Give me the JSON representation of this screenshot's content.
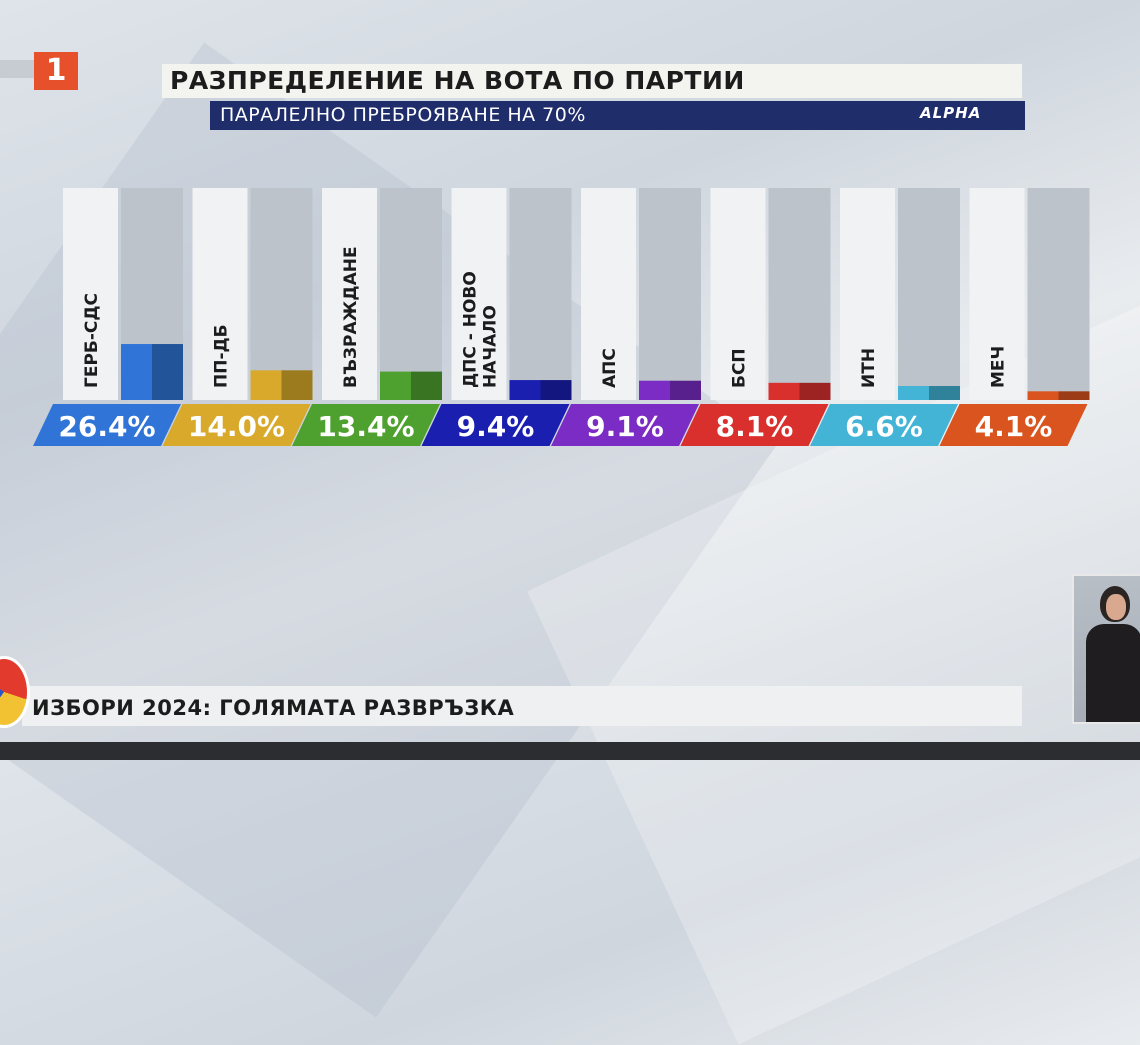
{
  "channel_logo": "1",
  "header": {
    "title": "РАЗПРЕДЕЛЕНИЕ НА ВОТА ПО ПАРТИИ",
    "subtitle": "ПАРАЛЕЛНО ПРЕБРОЯВАНЕ НА 70%",
    "source_logo": "ALPHA"
  },
  "footer": {
    "text": "ИЗБОРИ 2024: ГОЛЯМАТА РАЗВРЪЗКА"
  },
  "chart_data": {
    "type": "bar",
    "title": "РАЗПРЕДЕЛЕНИЕ НА ВОТА ПО ПАРТИИ",
    "subtitle": "ПАРАЛЕЛНО ПРЕБРОЯВАНЕ НА 70%",
    "categories": [
      "ГЕРБ-СДС",
      "ПП-ДБ",
      "ВЪЗРАЖДАНЕ",
      "ДПС - НОВО НАЧАЛО",
      "АПС",
      "БСП",
      "ИТН",
      "МЕЧ"
    ],
    "values": [
      26.4,
      14.0,
      13.4,
      9.4,
      9.1,
      8.1,
      6.6,
      4.1
    ],
    "value_labels": [
      "26.4%",
      "14.0%",
      "13.4%",
      "9.4%",
      "9.1%",
      "8.1%",
      "6.6%",
      "4.1%"
    ],
    "unit": "%",
    "colors": [
      "#2f74d6",
      "#d8a92a",
      "#4ea12e",
      "#1a1fb0",
      "#7a2cc4",
      "#d9302e",
      "#43b4d6",
      "#d9541e"
    ],
    "ylim": [
      0,
      100
    ]
  }
}
